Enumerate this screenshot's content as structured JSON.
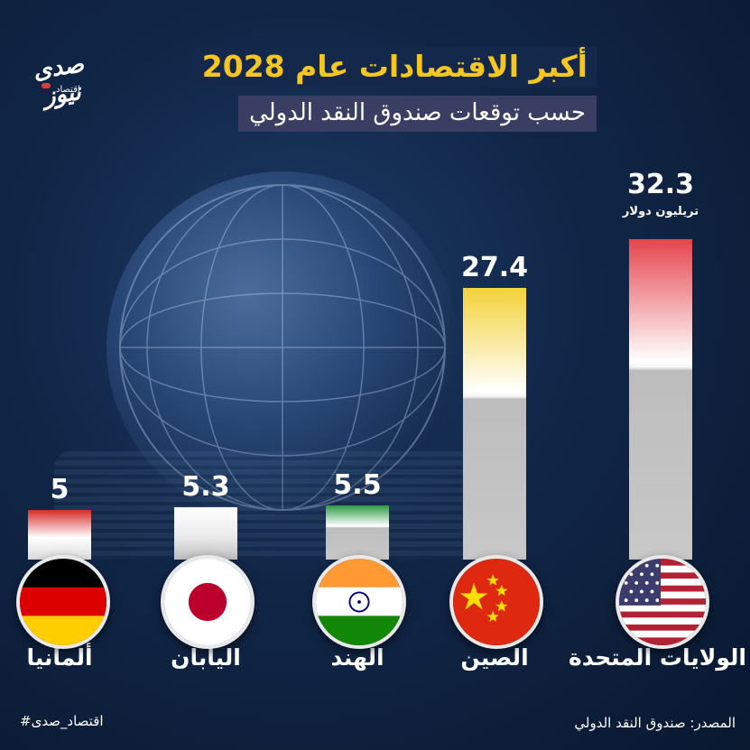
{
  "header": {
    "title": "أكبر الاقتصادات عام 2028",
    "subtitle": "حسب توقعات صندوق النقد الدولي"
  },
  "logo": {
    "text": "صدى نيوز",
    "sub": "اقتصاد"
  },
  "chart_data": {
    "type": "bar",
    "title": "أكبر الاقتصادات عام 2028",
    "subtitle": "حسب توقعات صندوق النقد الدولي",
    "unit": "تريليون دولار",
    "categories": [
      "الولايات المتحدة",
      "الصين",
      "الهند",
      "اليابان",
      "ألمانيا"
    ],
    "values": [
      32.3,
      27.4,
      5.5,
      5.3,
      5
    ],
    "value_labels": [
      "32.3",
      "27.4",
      "5.5",
      "5.3",
      "5"
    ],
    "ylim": [
      0,
      32.3
    ],
    "colors": [
      "#e5454d",
      "#f3d23a",
      "#2e9a45",
      "#ffffff",
      "#d82a2a"
    ]
  },
  "footer": {
    "hashtag": "#اقتصاد_صدى",
    "source": "المصدر: صندوق النقد الدولي"
  }
}
